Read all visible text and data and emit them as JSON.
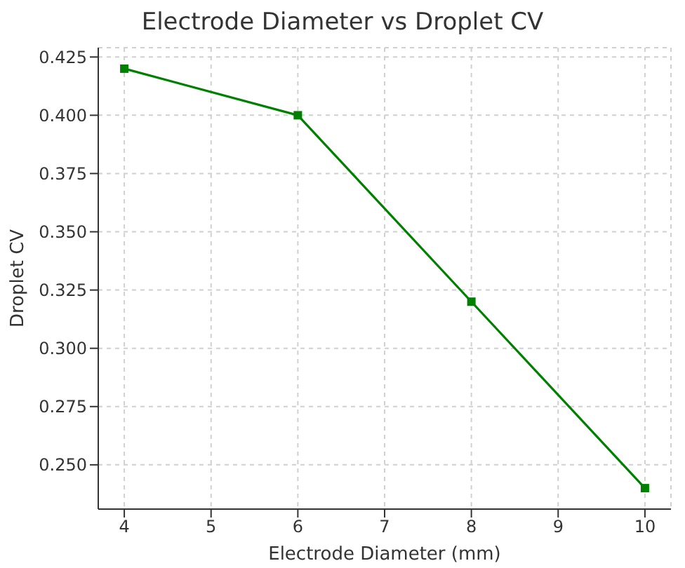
{
  "chart_data": {
    "type": "line",
    "title": "Electrode Diameter vs Droplet CV",
    "xlabel": "Electrode Diameter (mm)",
    "ylabel": "Droplet CV",
    "x": [
      4,
      6,
      8,
      10
    ],
    "series": [
      {
        "color": "#008000",
        "values": [
          0.42,
          0.4,
          0.32,
          0.24
        ]
      }
    ],
    "xlim": [
      3.7,
      10.3
    ],
    "xticks": [
      4,
      5,
      6,
      7,
      8,
      9,
      10
    ],
    "ylim": [
      0.231,
      0.429
    ],
    "yticks": [
      {
        "value": 0.25,
        "label": "0.250"
      },
      {
        "value": 0.275,
        "label": "0.275"
      },
      {
        "value": 0.3,
        "label": "0.300"
      },
      {
        "value": 0.325,
        "label": "0.325"
      },
      {
        "value": 0.35,
        "label": "0.350"
      },
      {
        "value": 0.375,
        "label": "0.375"
      },
      {
        "value": 0.4,
        "label": "0.400"
      },
      {
        "value": 0.425,
        "label": "0.425"
      }
    ],
    "grid": true,
    "marker": "square",
    "line_style": "solid",
    "legend": false
  }
}
